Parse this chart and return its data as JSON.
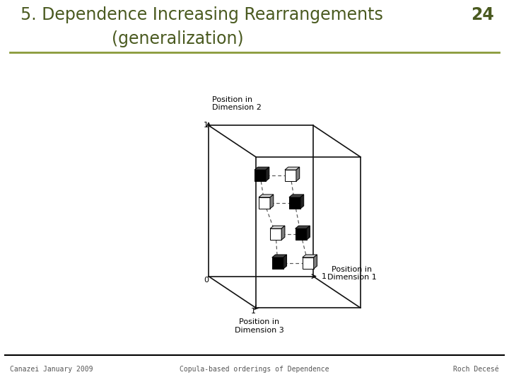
{
  "title_line1": "5. Dependence Increasing Rearrangements",
  "title_line2": "(generalization)",
  "slide_number": "24",
  "footer_left": "Canazei January 2009",
  "footer_center": "Copula-based orderings of Dependence",
  "footer_right": "Roch Decesé",
  "title_color": "#4a5a20",
  "footer_color": "#555555",
  "separator_color": "#8a9a3a",
  "bg_color": "#ffffff",
  "cube_edge_color": "#111111",
  "dashed_color": "#555555"
}
